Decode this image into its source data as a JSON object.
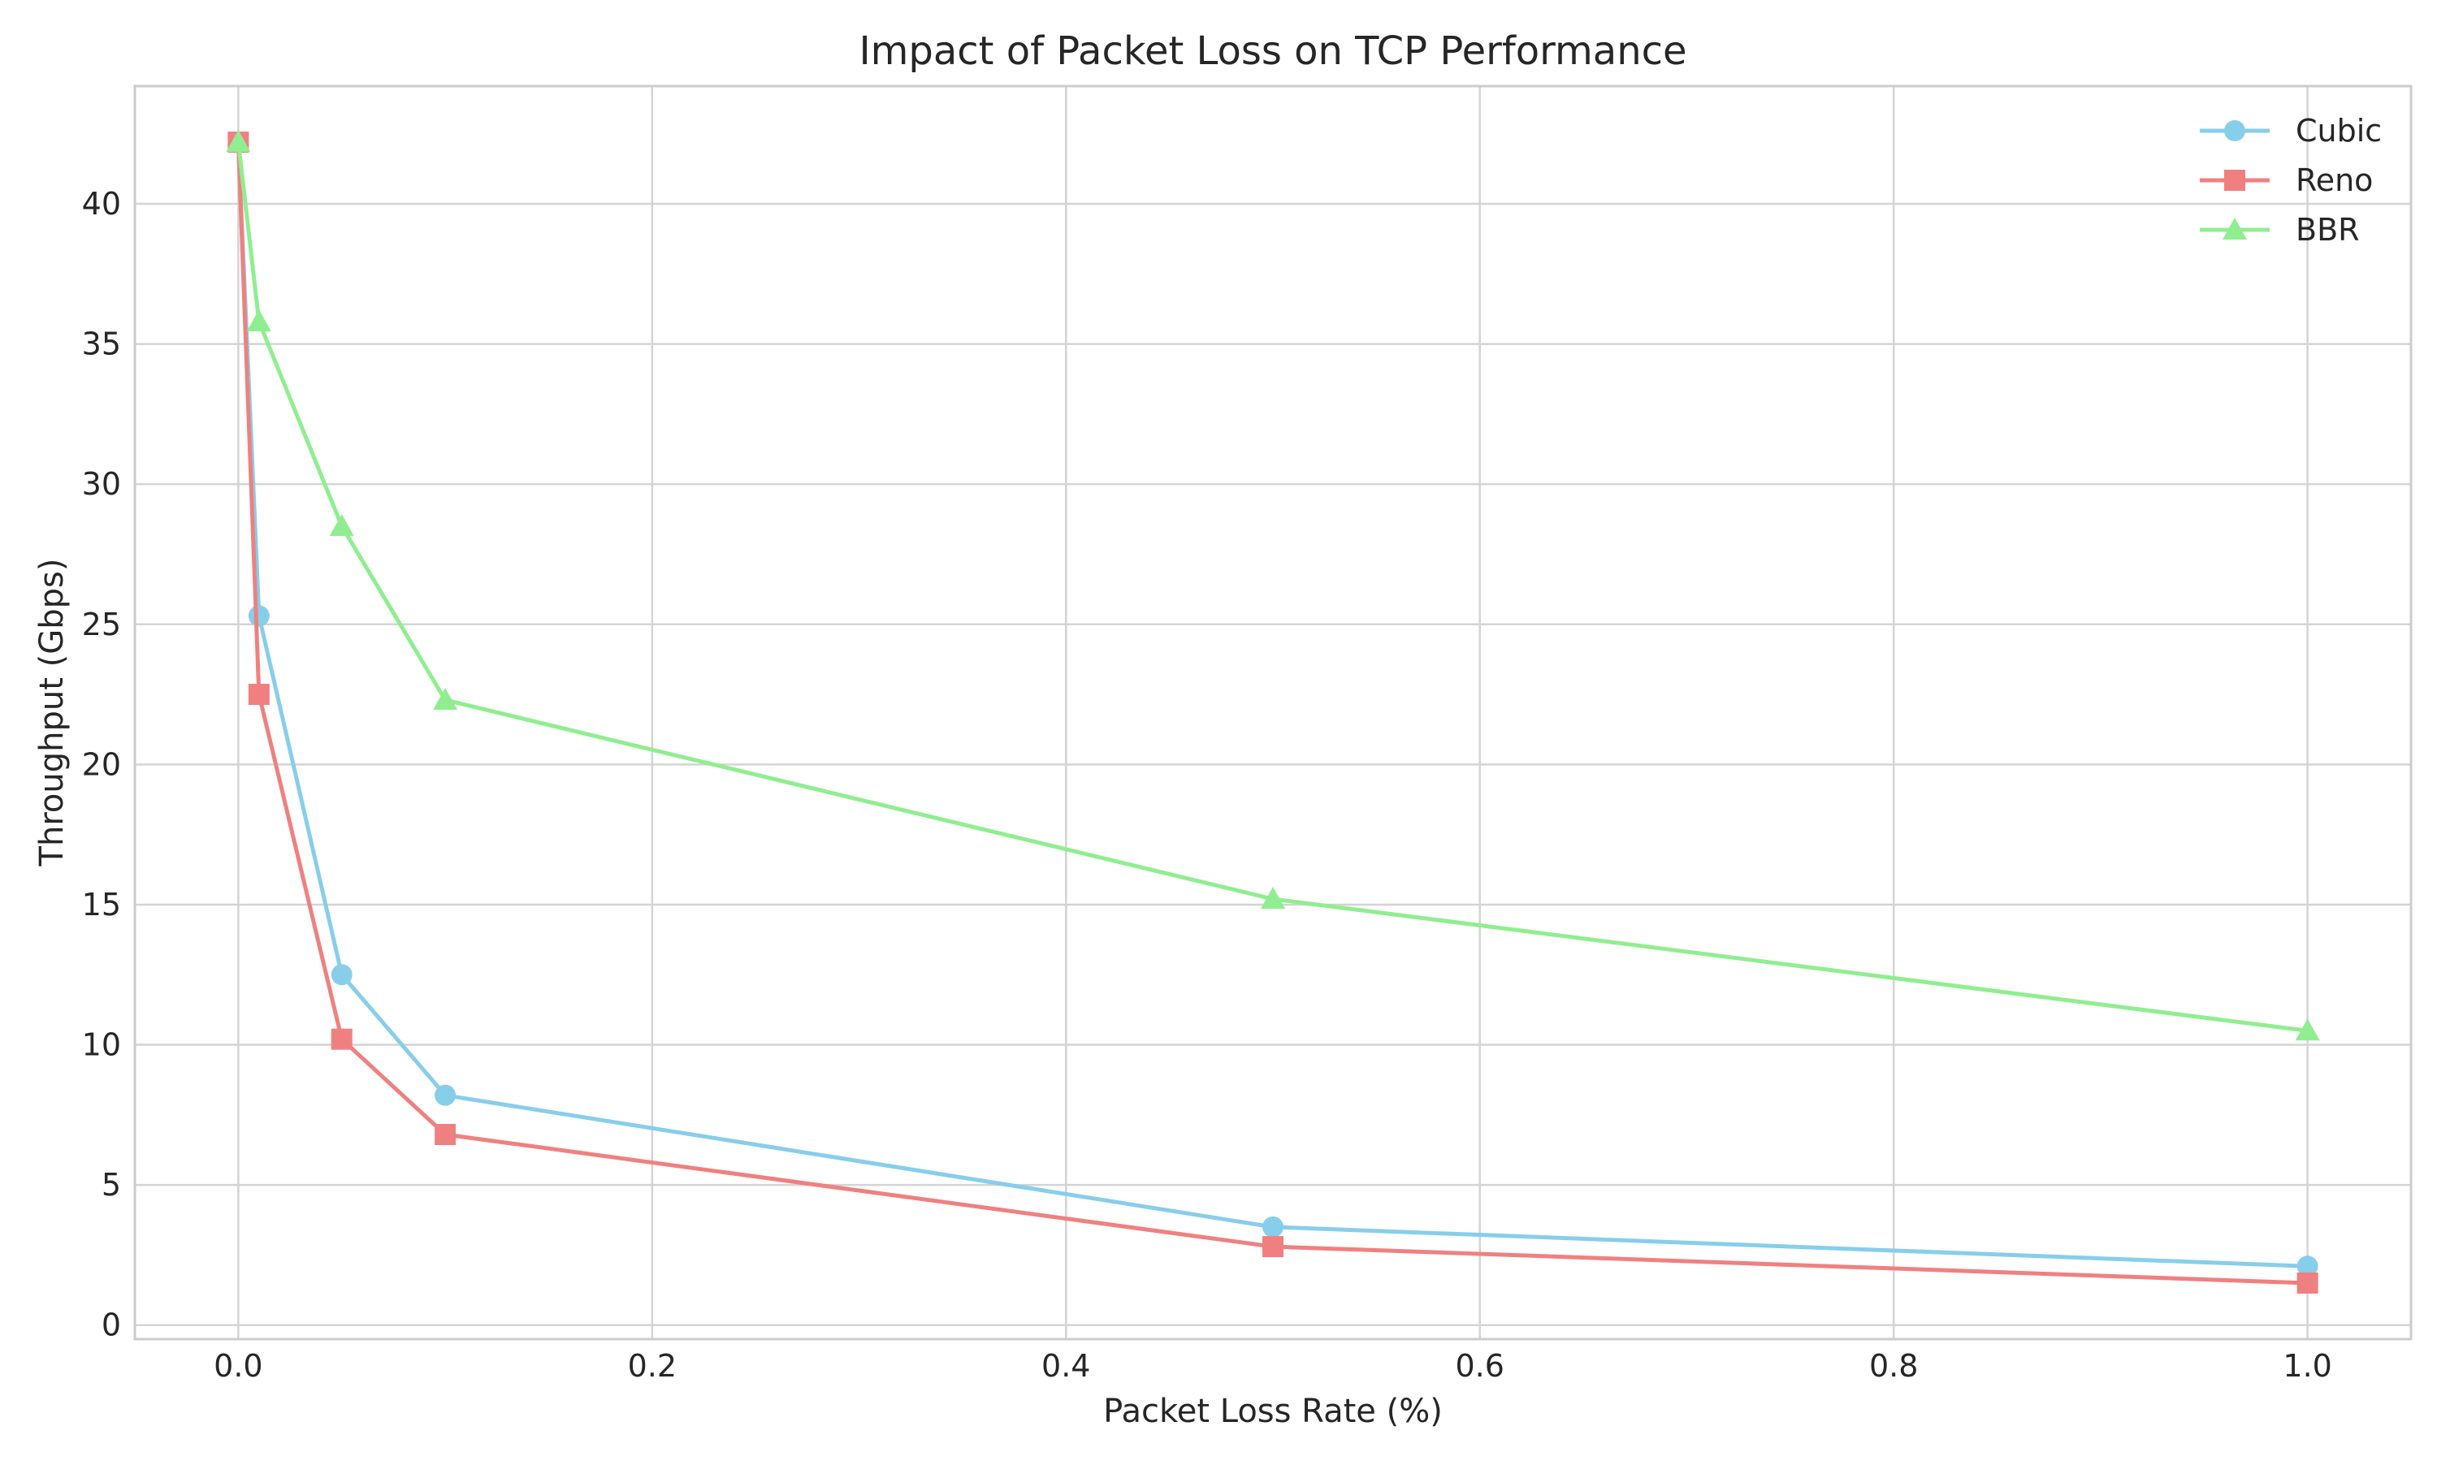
{
  "chart_data": {
    "type": "line",
    "title": "Impact of Packet Loss on TCP Performance",
    "xlabel": "Packet Loss Rate (%)",
    "ylabel": "Throughput (Gbps)",
    "x": [
      0,
      0.01,
      0.05,
      0.1,
      0.5,
      1.0
    ],
    "xlim": [
      -0.05,
      1.05
    ],
    "ylim": [
      -0.5,
      44.2
    ],
    "xticks": [
      0.0,
      0.2,
      0.4,
      0.6,
      0.8,
      1.0
    ],
    "xtick_labels": [
      "0.0",
      "0.2",
      "0.4",
      "0.6",
      "0.8",
      "1.0"
    ],
    "yticks": [
      0,
      5,
      10,
      15,
      20,
      25,
      30,
      35,
      40
    ],
    "ytick_labels": [
      "0",
      "5",
      "10",
      "15",
      "20",
      "25",
      "30",
      "35",
      "40"
    ],
    "grid": true,
    "legend_position": "top-right",
    "series": [
      {
        "name": "Cubic",
        "color": "#87CEEB",
        "marker": "circle",
        "values": [
          42.2,
          25.3,
          12.5,
          8.2,
          3.5,
          2.1
        ]
      },
      {
        "name": "Reno",
        "color": "#F08080",
        "marker": "square",
        "values": [
          42.2,
          22.5,
          10.2,
          6.8,
          2.8,
          1.5
        ]
      },
      {
        "name": "BBR",
        "color": "#90EE90",
        "marker": "triangle",
        "values": [
          42.2,
          35.8,
          28.5,
          22.3,
          15.2,
          10.5
        ]
      }
    ]
  }
}
